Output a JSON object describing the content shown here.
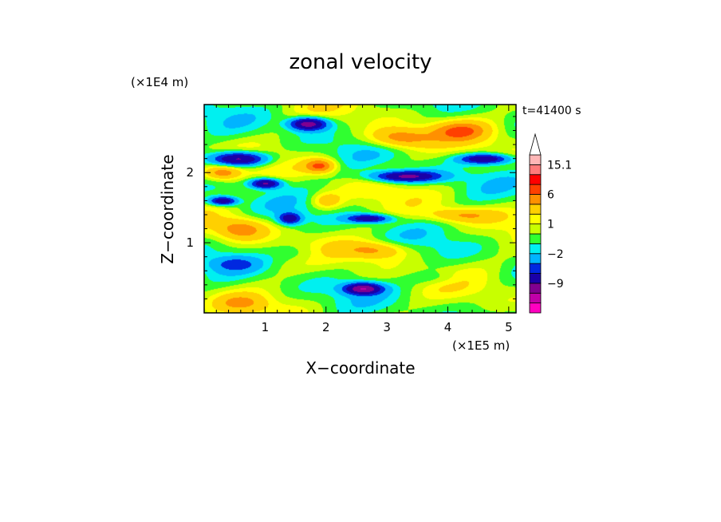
{
  "chart_data": {
    "type": "heatmap",
    "title": "zonal velocity",
    "xlabel": "X−coordinate",
    "ylabel": "Z−coordinate",
    "x_unit": "(×1E5 m)",
    "y_unit": "(×1E4 m)",
    "time_label": "t=41400 s",
    "xlim": [
      0,
      5.12
    ],
    "ylim": [
      0,
      2.97
    ],
    "x_ticks": [
      "1",
      "2",
      "3",
      "4",
      "5"
    ],
    "y_ticks": [
      "1",
      "2"
    ],
    "colorbar": {
      "levels": [
        -15,
        -12,
        -9,
        -6,
        -4,
        -2,
        -1,
        0,
        1,
        2,
        4,
        6,
        9,
        12,
        15.1
      ],
      "labels": [
        "15.1",
        "6",
        "1",
        "−2",
        "−9"
      ],
      "colors": [
        "#ff00c0",
        "#c000a8",
        "#800090",
        "#1a00a8",
        "#0028e0",
        "#00b4ff",
        "#00f0f0",
        "#30ff30",
        "#c8ff00",
        "#ffff00",
        "#ffd000",
        "#ff9000",
        "#ff4000",
        "#ff0000",
        "#ff7a7a",
        "#ffb6b6",
        "#ffffff"
      ]
    }
  }
}
